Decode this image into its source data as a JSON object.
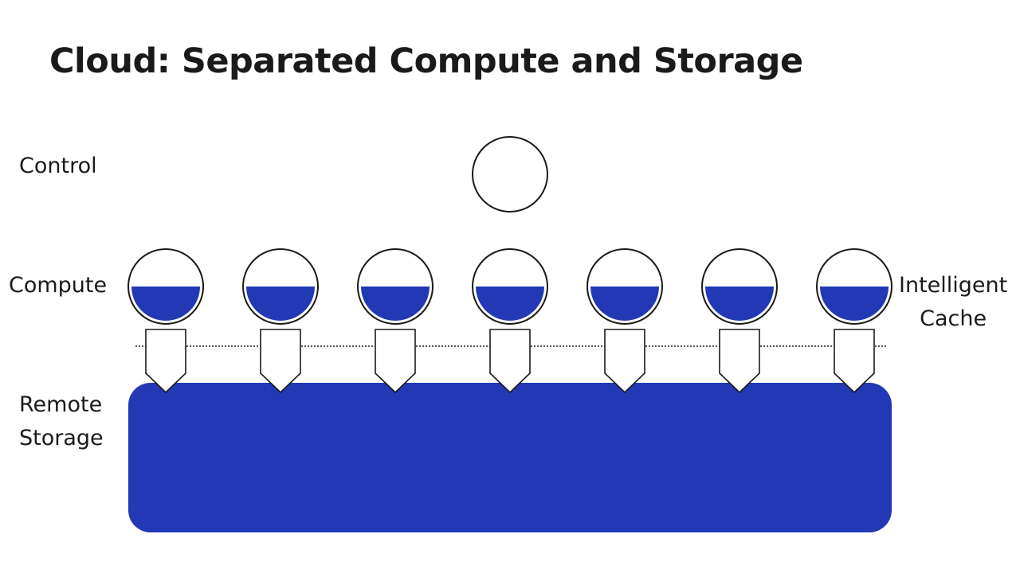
{
  "slide": {
    "title": "Cloud: Separated Compute and Storage"
  },
  "labels": {
    "control": "Control",
    "compute": "Compute",
    "remote_storage": [
      "Remote",
      "Storage"
    ],
    "intelligent_cache": [
      "Intelligent",
      "Cache"
    ]
  },
  "diagram": {
    "control_nodes": 1,
    "compute_nodes": 7,
    "cache_fill_fraction": 0.5,
    "colors": {
      "accent": "#2238b4",
      "outline": "#1a1a1a",
      "background": "#ffffff"
    }
  }
}
